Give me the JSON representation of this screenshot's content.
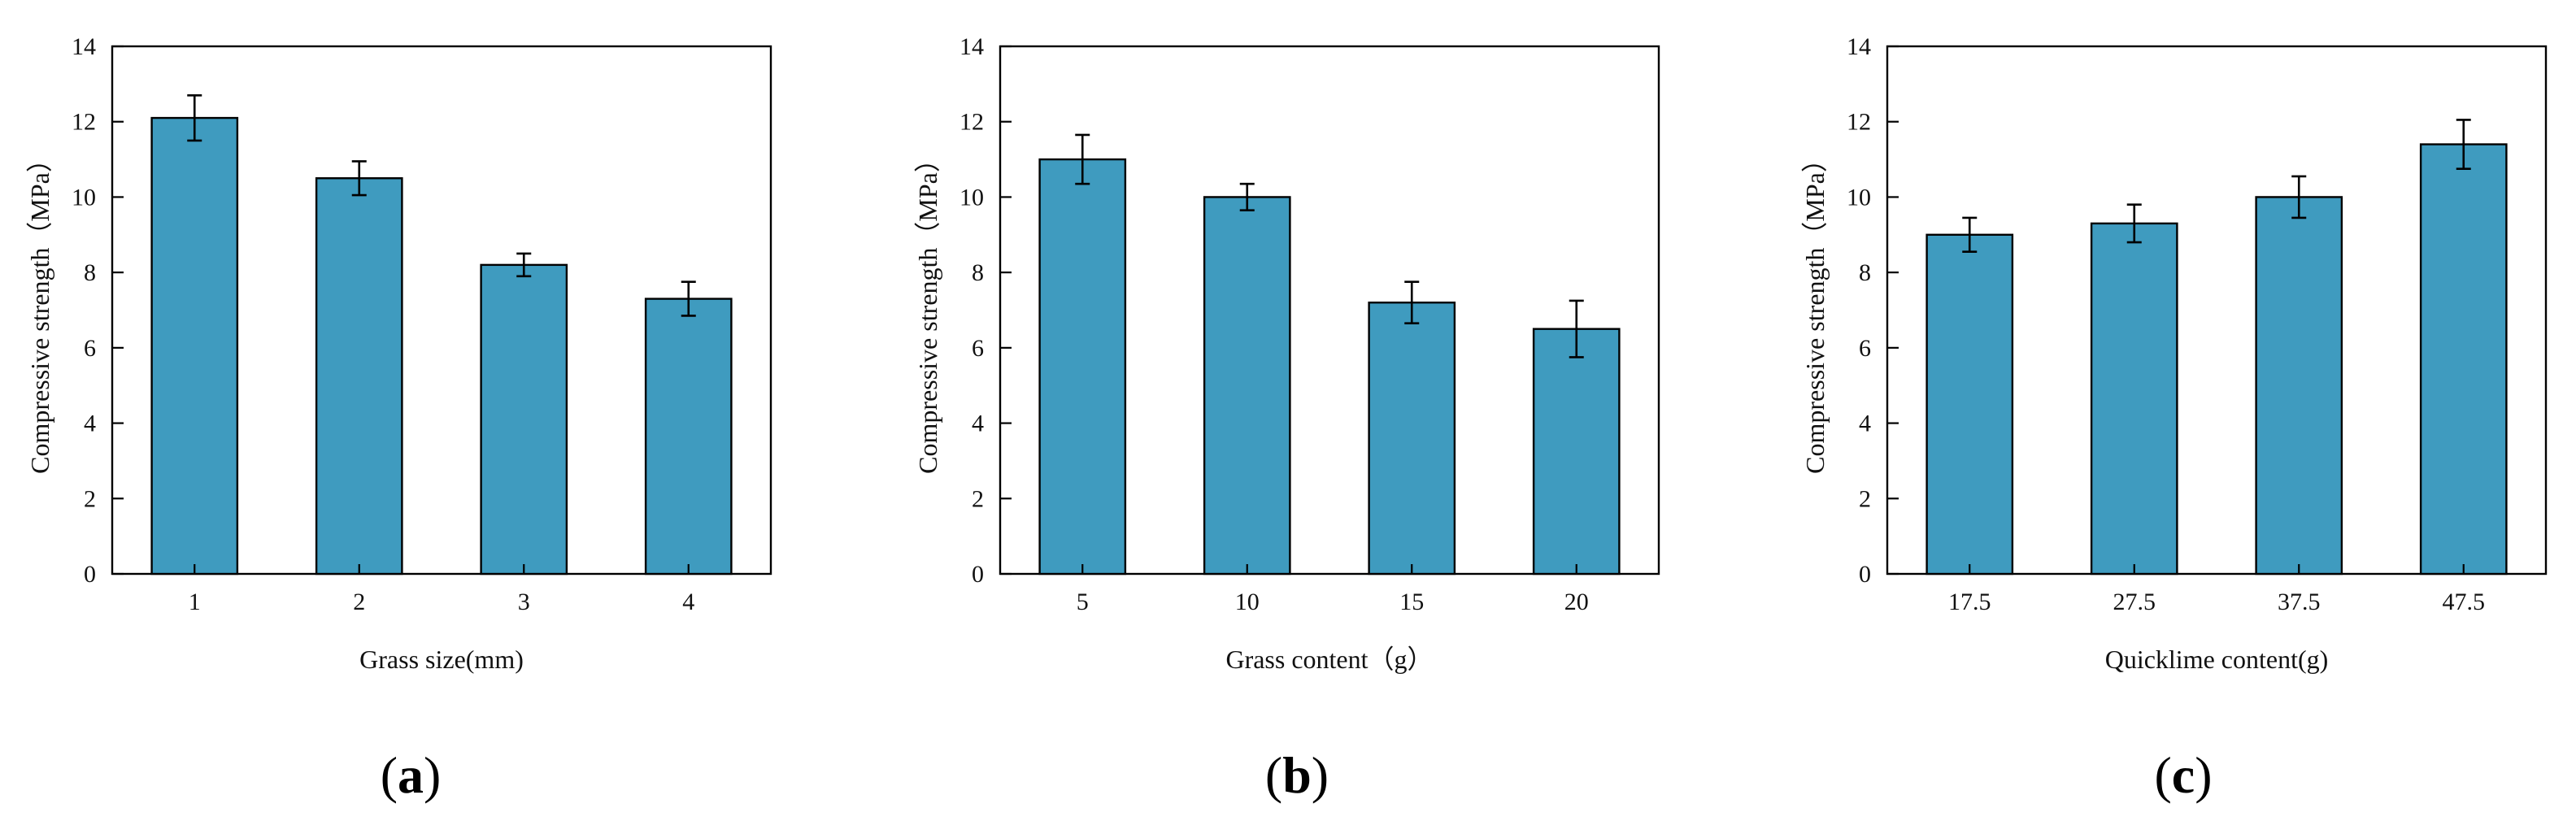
{
  "colors": {
    "bar": "#3f9bbf",
    "axis": "#000000"
  },
  "chart_data": [
    {
      "type": "bar",
      "panel_label": {
        "open": "(",
        "letter": "a",
        "close": ")"
      },
      "categories": [
        "1",
        "2",
        "3",
        "4"
      ],
      "values": [
        12.1,
        10.5,
        8.2,
        7.3
      ],
      "errors": [
        0.6,
        0.45,
        0.3,
        0.45
      ],
      "xlabel": "Grass size(mm)",
      "ylabel": "Compressive strength（MPa）",
      "ylim": [
        0,
        14
      ],
      "yticks": [
        "0",
        "2",
        "4",
        "6",
        "8",
        "10",
        "12",
        "14"
      ],
      "grid": false
    },
    {
      "type": "bar",
      "panel_label": {
        "open": "(",
        "letter": "b",
        "close": ")"
      },
      "categories": [
        "5",
        "10",
        "15",
        "20"
      ],
      "values": [
        11.0,
        10.0,
        7.2,
        6.5
      ],
      "errors": [
        0.65,
        0.35,
        0.55,
        0.75
      ],
      "xlabel": "Grass content（g）",
      "ylabel": "Compressive strength（MPa）",
      "ylim": [
        0,
        14
      ],
      "yticks": [
        "0",
        "2",
        "4",
        "6",
        "8",
        "10",
        "12",
        "14"
      ],
      "grid": false
    },
    {
      "type": "bar",
      "panel_label": {
        "open": "(",
        "letter": "c",
        "close": ")"
      },
      "categories": [
        "17.5",
        "27.5",
        "37.5",
        "47.5"
      ],
      "values": [
        9.0,
        9.3,
        10.0,
        11.4
      ],
      "errors": [
        0.45,
        0.5,
        0.55,
        0.65
      ],
      "xlabel": "Quicklime content(g)",
      "ylabel": "Compressive strength（MPa）",
      "ylim": [
        0,
        14
      ],
      "yticks": [
        "0",
        "2",
        "4",
        "6",
        "8",
        "10",
        "12",
        "14"
      ],
      "grid": false
    }
  ]
}
